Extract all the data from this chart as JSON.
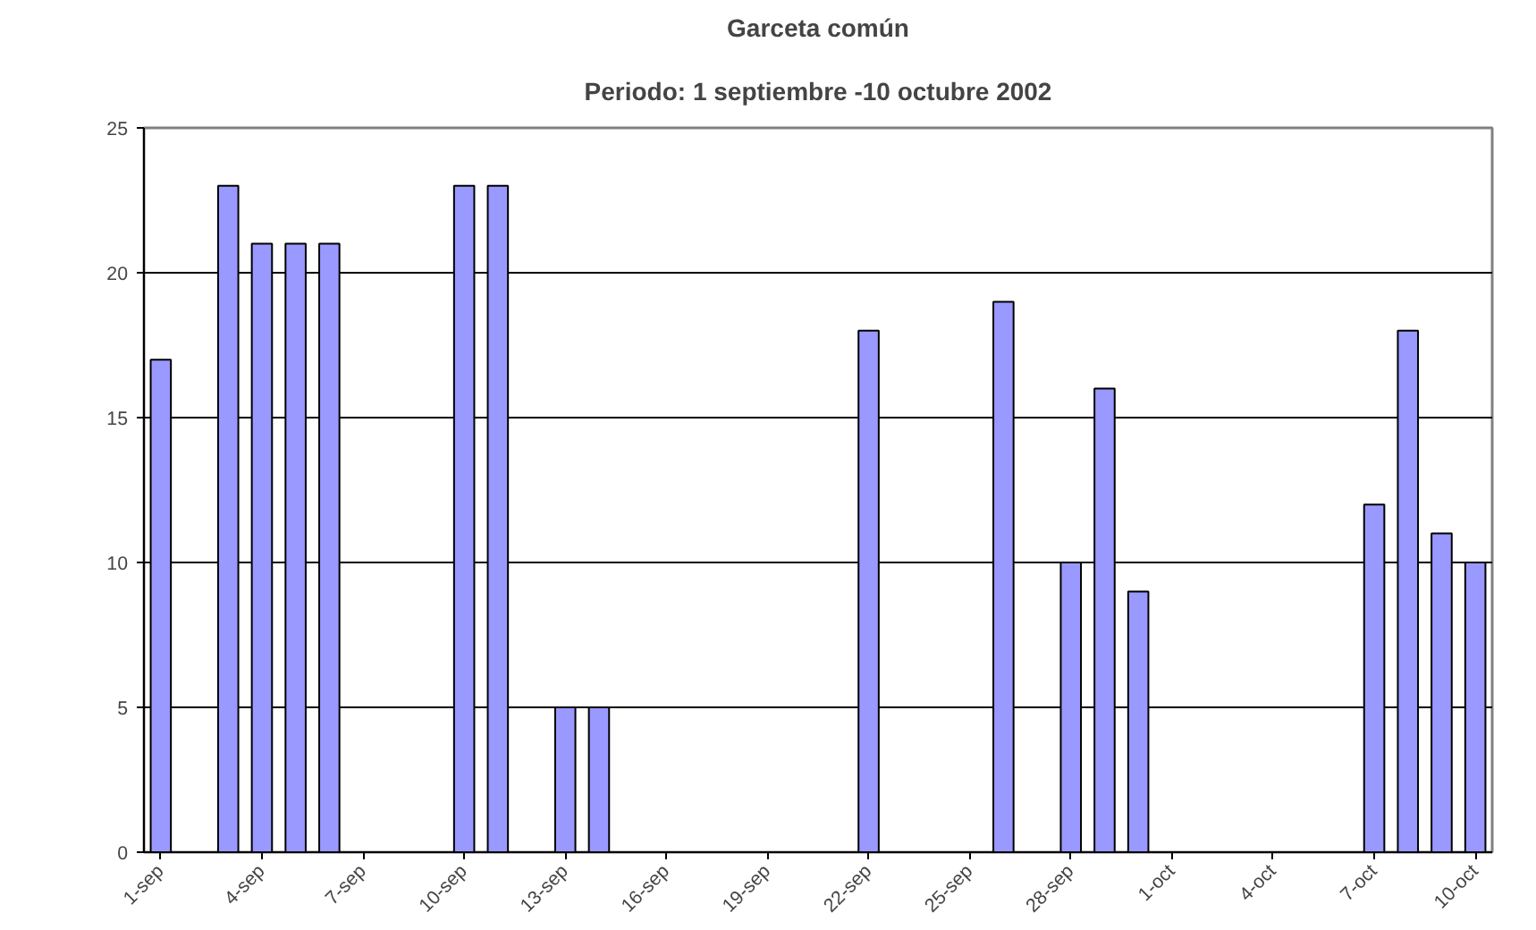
{
  "chart_data": {
    "type": "bar",
    "title": "Garceta común",
    "subtitle": "Periodo: 1 septiembre -10 octubre 2002",
    "x": [
      "2002-09-01",
      "2002-09-03",
      "2002-09-04",
      "2002-09-05",
      "2002-09-06",
      "2002-09-10",
      "2002-09-11",
      "2002-09-13",
      "2002-09-14",
      "2002-09-22",
      "2002-09-26",
      "2002-09-28",
      "2002-09-29",
      "2002-09-30",
      "2002-10-07",
      "2002-10-08",
      "2002-10-09",
      "2002-10-10"
    ],
    "values": [
      17,
      23,
      21,
      21,
      21,
      23,
      23,
      5,
      5,
      18,
      19,
      10,
      16,
      9,
      12,
      18,
      11,
      10
    ],
    "color": "#9999ff",
    "xlim": [
      "2002-08-31T12:00",
      "2002-10-10T12:00"
    ],
    "xticks": [
      {
        "value": "2002-09-01",
        "label": "1-sep"
      },
      {
        "value": "2002-09-04",
        "label": "4-sep"
      },
      {
        "value": "2002-09-07",
        "label": "7-sep"
      },
      {
        "value": "2002-09-10",
        "label": "10-sep"
      },
      {
        "value": "2002-09-13",
        "label": "13-sep"
      },
      {
        "value": "2002-09-16",
        "label": "16-sep"
      },
      {
        "value": "2002-09-19",
        "label": "19-sep"
      },
      {
        "value": "2002-09-22",
        "label": "22-sep"
      },
      {
        "value": "2002-09-25",
        "label": "25-sep"
      },
      {
        "value": "2002-09-28",
        "label": "28-sep"
      },
      {
        "value": "2002-10-01",
        "label": "1-oct"
      },
      {
        "value": "2002-10-04",
        "label": "4-oct"
      },
      {
        "value": "2002-10-07",
        "label": "7-oct"
      },
      {
        "value": "2002-10-10",
        "label": "10-oct"
      }
    ],
    "ylim": [
      0,
      25
    ],
    "yticks": [
      0,
      5,
      10,
      15,
      20,
      25
    ],
    "grid": "y"
  }
}
